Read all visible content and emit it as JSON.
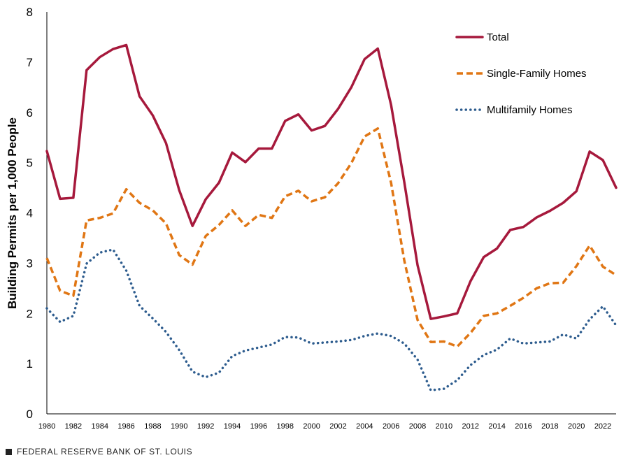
{
  "footer": {
    "source": "FEDERAL RESERVE BANK OF ST. LOUIS"
  },
  "chart_data": {
    "type": "line",
    "title": "",
    "xlabel": "",
    "ylabel": "Building Permits per 1,000 People",
    "xlim": [
      1980,
      2023
    ],
    "ylim": [
      0,
      8
    ],
    "yticks": [
      "0",
      "1",
      "2",
      "3",
      "4",
      "5",
      "6",
      "7",
      "8"
    ],
    "xticks": [
      "1980",
      "1982",
      "1984",
      "1986",
      "1988",
      "1990",
      "1992",
      "1994",
      "1996",
      "1998",
      "2000",
      "2002",
      "2004",
      "2006",
      "2008",
      "2010",
      "2012",
      "2014",
      "2016",
      "2018",
      "2020",
      "2022"
    ],
    "grid": false,
    "legend_position": "top-right",
    "x": [
      1980,
      1981,
      1982,
      1983,
      1984,
      1985,
      1986,
      1987,
      1988,
      1989,
      1990,
      1991,
      1992,
      1993,
      1994,
      1995,
      1996,
      1997,
      1998,
      1999,
      2000,
      2001,
      2002,
      2003,
      2004,
      2005,
      2006,
      2007,
      2008,
      2009,
      2010,
      2011,
      2012,
      2013,
      2014,
      2015,
      2016,
      2017,
      2018,
      2019,
      2020,
      2021,
      2022,
      2023
    ],
    "series": [
      {
        "name": "Total",
        "color": "#A6193C",
        "style": "solid",
        "values": [
          5.23,
          4.28,
          4.3,
          6.84,
          7.1,
          7.26,
          7.34,
          6.32,
          5.94,
          5.39,
          4.45,
          3.74,
          4.27,
          4.6,
          5.2,
          5.01,
          5.28,
          5.28,
          5.83,
          5.96,
          5.64,
          5.73,
          6.07,
          6.5,
          7.06,
          7.27,
          6.15,
          4.61,
          2.96,
          1.89,
          1.94,
          2.0,
          2.64,
          3.12,
          3.29,
          3.66,
          3.72,
          3.91,
          4.04,
          4.2,
          4.43,
          5.22,
          5.05,
          4.5
        ]
      },
      {
        "name": "Single-Family Homes",
        "color": "#E07614",
        "style": "dashed",
        "values": [
          3.1,
          2.45,
          2.35,
          3.85,
          3.9,
          3.99,
          4.47,
          4.2,
          4.05,
          3.79,
          3.16,
          2.97,
          3.54,
          3.76,
          4.05,
          3.74,
          3.96,
          3.9,
          4.33,
          4.44,
          4.23,
          4.31,
          4.59,
          4.99,
          5.52,
          5.68,
          4.6,
          3.05,
          1.87,
          1.43,
          1.44,
          1.34,
          1.61,
          1.95,
          2.0,
          2.15,
          2.31,
          2.5,
          2.6,
          2.61,
          2.94,
          3.35,
          2.93,
          2.76
        ]
      },
      {
        "name": "Multifamily Homes",
        "color": "#2D5C8E",
        "style": "dotted",
        "values": [
          2.1,
          1.83,
          1.95,
          2.99,
          3.21,
          3.27,
          2.85,
          2.15,
          1.9,
          1.63,
          1.27,
          0.84,
          0.73,
          0.82,
          1.15,
          1.26,
          1.32,
          1.38,
          1.53,
          1.52,
          1.4,
          1.42,
          1.44,
          1.47,
          1.55,
          1.6,
          1.55,
          1.4,
          1.08,
          0.47,
          0.5,
          0.67,
          0.97,
          1.17,
          1.28,
          1.5,
          1.4,
          1.42,
          1.44,
          1.58,
          1.5,
          1.88,
          2.14,
          1.76
        ]
      }
    ]
  }
}
